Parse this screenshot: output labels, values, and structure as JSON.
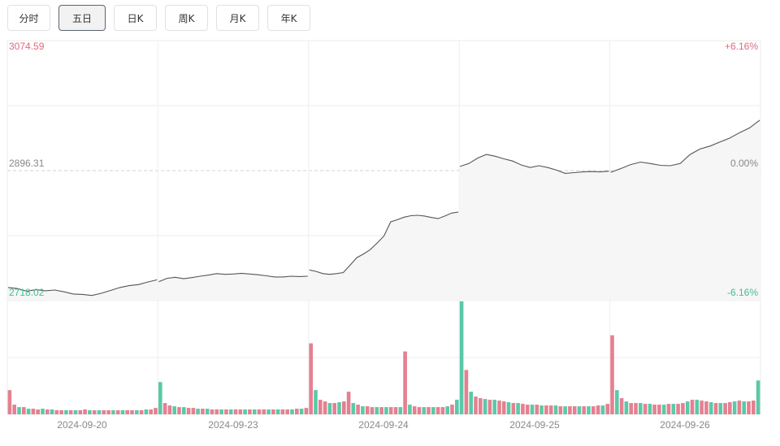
{
  "tabs": [
    {
      "label": "分时",
      "active": false
    },
    {
      "label": "五日",
      "active": true
    },
    {
      "label": "日K",
      "active": false
    },
    {
      "label": "周K",
      "active": false
    },
    {
      "label": "月K",
      "active": false
    },
    {
      "label": "年K",
      "active": false
    }
  ],
  "colors": {
    "up": "#e06a7d",
    "down": "#3dbf98",
    "line": "#555555",
    "grid": "#eeeeee",
    "mid": "#d0d0d0"
  },
  "chart_data": {
    "type": "line",
    "y_high": {
      "price": "3074.59",
      "pct": "+6.16%"
    },
    "y_mid": {
      "price": "2896.31",
      "pct": "0.00%"
    },
    "y_low": {
      "price": "2718.02",
      "pct": "-6.16%"
    },
    "ylim": [
      2718.02,
      3074.59
    ],
    "days": [
      "2024-09-20",
      "2024-09-23",
      "2024-09-24",
      "2024-09-25",
      "2024-09-26"
    ],
    "series": [
      {
        "day": "2024-09-20",
        "values": [
          2736.0,
          2734.5,
          2731.0,
          2733.0,
          2731.5,
          2732.5,
          2730.0,
          2727.0,
          2726.5,
          2725.0,
          2728.0,
          2732.0,
          2736.0,
          2738.5,
          2740.0,
          2743.5,
          2746.5
        ]
      },
      {
        "day": "2024-09-23",
        "values": [
          2744.0,
          2748.5,
          2750.0,
          2748.0,
          2749.5,
          2751.5,
          2753.0,
          2755.0,
          2754.0,
          2754.5,
          2755.5,
          2754.5,
          2753.5,
          2752.0,
          2750.5,
          2750.5,
          2751.5,
          2751.0,
          2751.5
        ]
      },
      {
        "day": "2024-09-24",
        "values": [
          2760.0,
          2758.0,
          2755.0,
          2754.0,
          2755.0,
          2756.5,
          2766.5,
          2777.0,
          2782.0,
          2788.0,
          2797.0,
          2806.5,
          2826.0,
          2829.0,
          2832.5,
          2834.5,
          2835.0,
          2834.0,
          2832.0,
          2830.5,
          2834.0,
          2838.0,
          2839.5
        ]
      },
      {
        "day": "2024-09-25",
        "values": [
          2902.0,
          2906.0,
          2913.5,
          2918.5,
          2916.0,
          2912.5,
          2909.5,
          2904.0,
          2900.5,
          2903.0,
          2900.5,
          2897.0,
          2892.5,
          2893.5,
          2894.5,
          2895.0,
          2894.5,
          2895.5
        ]
      },
      {
        "day": "2024-09-26",
        "values": [
          2894.0,
          2899.0,
          2904.5,
          2908.0,
          2906.0,
          2903.5,
          2903.0,
          2906.0,
          2918.5,
          2926.0,
          2930.0,
          2935.5,
          2941.0,
          2948.5,
          2955.0,
          2965.5
        ]
      }
    ],
    "volume": [
      [
        30,
        12,
        9,
        9,
        7,
        7,
        6,
        7,
        6,
        6,
        5,
        5,
        5,
        5,
        5,
        5,
        6,
        5,
        5,
        5,
        5,
        5,
        5,
        5,
        5,
        5,
        5,
        5,
        5,
        6,
        6,
        8
      ],
      [
        40,
        14,
        11,
        10,
        9,
        9,
        8,
        8,
        7,
        7,
        7,
        6,
        6,
        6,
        6,
        6,
        6,
        6,
        6,
        6,
        6,
        6,
        6,
        6,
        6,
        6,
        6,
        6,
        6,
        7,
        7,
        8
      ],
      [
        88,
        30,
        18,
        16,
        14,
        14,
        15,
        16,
        28,
        14,
        12,
        10,
        10,
        9,
        9,
        9,
        9,
        9,
        9,
        9,
        78,
        12,
        10,
        9,
        9,
        9,
        9,
        9,
        9,
        10,
        12,
        18
      ],
      [
        140,
        55,
        28,
        22,
        20,
        19,
        18,
        18,
        17,
        16,
        15,
        14,
        14,
        13,
        12,
        12,
        12,
        11,
        11,
        11,
        11,
        10,
        10,
        10,
        10,
        10,
        10,
        10,
        10,
        11,
        11,
        13
      ],
      [
        98,
        30,
        20,
        16,
        14,
        14,
        14,
        13,
        13,
        12,
        12,
        12,
        13,
        13,
        13,
        14,
        16,
        18,
        18,
        17,
        16,
        15,
        14,
        14,
        14,
        15,
        16,
        17,
        16,
        16,
        17,
        42
      ]
    ],
    "volume_ylim": [
      0,
      140
    ],
    "xlabel": "",
    "ylabel": "",
    "grid": true
  }
}
